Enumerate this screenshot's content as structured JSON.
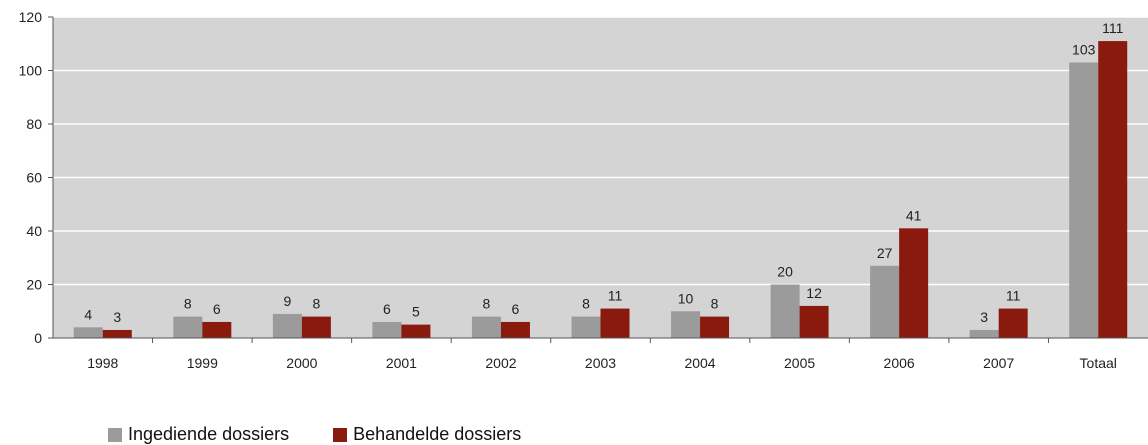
{
  "chart_data": {
    "type": "bar",
    "categories": [
      "1998",
      "1999",
      "2000",
      "2001",
      "2002",
      "2003",
      "2004",
      "2005",
      "2006",
      "2007",
      "Totaal"
    ],
    "series": [
      {
        "name": "Ingediende dossiers",
        "values": [
          4,
          8,
          9,
          6,
          8,
          8,
          10,
          20,
          27,
          3,
          103
        ],
        "color": "#9b9b9b"
      },
      {
        "name": "Behandelde dossiers",
        "values": [
          3,
          6,
          8,
          5,
          6,
          11,
          8,
          12,
          41,
          11,
          111
        ],
        "color": "#8b1a0e"
      }
    ],
    "ylim": [
      0,
      120
    ],
    "yticks": [
      0,
      20,
      40,
      60,
      80,
      100,
      120
    ],
    "plot_background": "#d4d4d4",
    "grid": true,
    "legend_position": "bottom-left"
  }
}
